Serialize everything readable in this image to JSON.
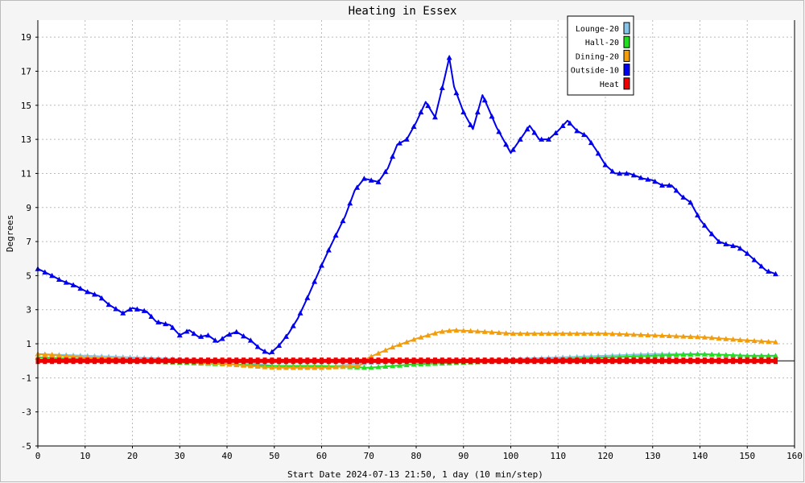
{
  "chart_data": {
    "type": "line",
    "title": "Heating in Essex",
    "xlabel": "Start Date 2024-07-13 21:50, 1 day (10 min/step)",
    "ylabel": "Degrees",
    "xlim": [
      0,
      160
    ],
    "ylim": [
      -5,
      20
    ],
    "xticks": [
      0,
      10,
      20,
      30,
      40,
      50,
      60,
      70,
      80,
      90,
      100,
      110,
      120,
      130,
      140,
      150,
      160
    ],
    "yticks": [
      -5,
      -3,
      -1,
      1,
      3,
      5,
      7,
      9,
      11,
      13,
      15,
      17,
      19
    ],
    "grid": true,
    "legend_position": "top-right",
    "series": [
      {
        "name": "Lounge-20",
        "color": "#87c5e8",
        "points": [
          [
            0,
            0.4
          ],
          [
            10,
            0.3
          ],
          [
            20,
            0.2
          ],
          [
            30,
            0.1
          ],
          [
            40,
            0
          ],
          [
            50,
            -0.3
          ],
          [
            60,
            -0.4
          ],
          [
            70,
            -0.1
          ],
          [
            80,
            0
          ],
          [
            90,
            0
          ],
          [
            100,
            0.1
          ],
          [
            110,
            0.2
          ],
          [
            120,
            0.3
          ],
          [
            130,
            0.4
          ],
          [
            140,
            0.4
          ],
          [
            150,
            0.3
          ],
          [
            156,
            0.3
          ]
        ]
      },
      {
        "name": "Hall-20",
        "color": "#22dd22",
        "points": [
          [
            0,
            0.2
          ],
          [
            10,
            0.1
          ],
          [
            20,
            0
          ],
          [
            30,
            -0.1
          ],
          [
            40,
            -0.2
          ],
          [
            50,
            -0.3
          ],
          [
            60,
            -0.3
          ],
          [
            70,
            -0.4
          ],
          [
            80,
            -0.2
          ],
          [
            90,
            -0.1
          ],
          [
            100,
            0
          ],
          [
            110,
            0.1
          ],
          [
            120,
            0.2
          ],
          [
            130,
            0.3
          ],
          [
            140,
            0.4
          ],
          [
            150,
            0.3
          ],
          [
            156,
            0.3
          ]
        ]
      },
      {
        "name": "Dining-20",
        "color": "#f29e0c",
        "points": [
          [
            0,
            0.4
          ],
          [
            10,
            0.2
          ],
          [
            20,
            0.1
          ],
          [
            30,
            0
          ],
          [
            40,
            -0.2
          ],
          [
            50,
            -0.4
          ],
          [
            60,
            -0.4
          ],
          [
            68,
            -0.3
          ],
          [
            70,
            0.2
          ],
          [
            75,
            0.8
          ],
          [
            80,
            1.3
          ],
          [
            85,
            1.7
          ],
          [
            88,
            1.8
          ],
          [
            95,
            1.7
          ],
          [
            100,
            1.6
          ],
          [
            110,
            1.6
          ],
          [
            120,
            1.6
          ],
          [
            130,
            1.5
          ],
          [
            140,
            1.4
          ],
          [
            150,
            1.2
          ],
          [
            156,
            1.1
          ]
        ]
      },
      {
        "name": "Outside-10",
        "color": "#0000ee",
        "points": [
          [
            0,
            5.4
          ],
          [
            3,
            5
          ],
          [
            5,
            4.7
          ],
          [
            8,
            4.4
          ],
          [
            10,
            4.1
          ],
          [
            13,
            3.8
          ],
          [
            15,
            3.3
          ],
          [
            18,
            2.8
          ],
          [
            20,
            3.1
          ],
          [
            23,
            2.9
          ],
          [
            25,
            2.3
          ],
          [
            28,
            2.1
          ],
          [
            30,
            1.5
          ],
          [
            32,
            1.8
          ],
          [
            34,
            1.4
          ],
          [
            36,
            1.5
          ],
          [
            38,
            1.1
          ],
          [
            40,
            1.5
          ],
          [
            42,
            1.7
          ],
          [
            45,
            1.2
          ],
          [
            47,
            0.7
          ],
          [
            49,
            0.4
          ],
          [
            51,
            0.9
          ],
          [
            53,
            1.6
          ],
          [
            55,
            2.5
          ],
          [
            57,
            3.7
          ],
          [
            60,
            5.6
          ],
          [
            62,
            6.8
          ],
          [
            65,
            8.5
          ],
          [
            67,
            10
          ],
          [
            69,
            10.7
          ],
          [
            72,
            10.5
          ],
          [
            74,
            11.3
          ],
          [
            76,
            12.7
          ],
          [
            78,
            13
          ],
          [
            80,
            14
          ],
          [
            82,
            15.2
          ],
          [
            84,
            14.3
          ],
          [
            86,
            16.6
          ],
          [
            87,
            17.8
          ],
          [
            88,
            16.1
          ],
          [
            90,
            14.6
          ],
          [
            92,
            13.6
          ],
          [
            94,
            15.6
          ],
          [
            95,
            15
          ],
          [
            97,
            13.7
          ],
          [
            100,
            12.2
          ],
          [
            102,
            13
          ],
          [
            104,
            13.8
          ],
          [
            106,
            13
          ],
          [
            108,
            13
          ],
          [
            110,
            13.5
          ],
          [
            112,
            14.1
          ],
          [
            114,
            13.5
          ],
          [
            116,
            13.2
          ],
          [
            118,
            12.4
          ],
          [
            120,
            11.5
          ],
          [
            122,
            11
          ],
          [
            125,
            11
          ],
          [
            128,
            10.7
          ],
          [
            130,
            10.6
          ],
          [
            132,
            10.3
          ],
          [
            134,
            10.3
          ],
          [
            136,
            9.7
          ],
          [
            138,
            9.3
          ],
          [
            140,
            8.3
          ],
          [
            142,
            7.6
          ],
          [
            144,
            7
          ],
          [
            146,
            6.8
          ],
          [
            148,
            6.7
          ],
          [
            150,
            6.3
          ],
          [
            152,
            5.8
          ],
          [
            154,
            5.3
          ],
          [
            156,
            5.1
          ]
        ]
      },
      {
        "name": "Heat",
        "color": "#ee0000",
        "points": [
          [
            0,
            0
          ],
          [
            156,
            0
          ]
        ]
      }
    ]
  }
}
